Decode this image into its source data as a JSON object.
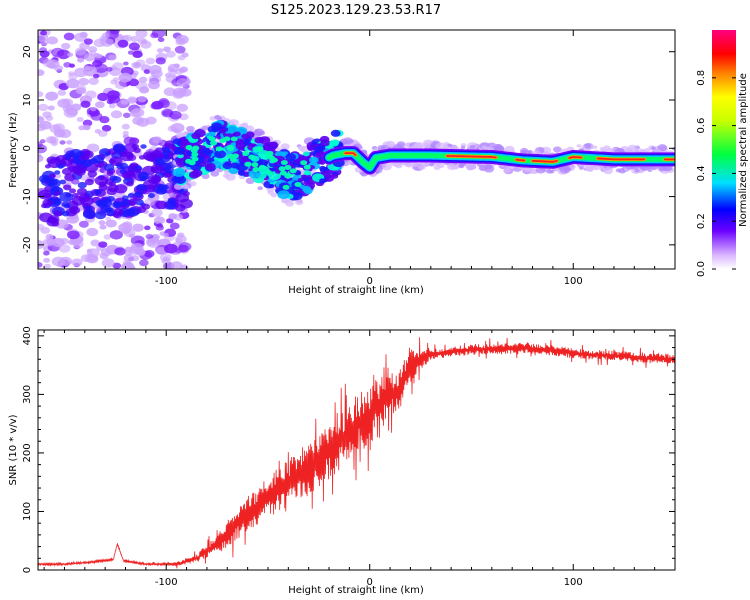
{
  "title": "S125.2023.129.23.53.R17",
  "chart_data": [
    {
      "type": "heatmap",
      "name": "spectrogram",
      "xlabel": "Height of straight line (km)",
      "ylabel": "Frequency (Hz)",
      "xlim": [
        -163,
        150
      ],
      "ylim": [
        -25,
        24.5
      ],
      "xticks": [
        -100,
        0,
        100
      ],
      "yticks": [
        -20,
        -10,
        0,
        10,
        20
      ],
      "colorbar": {
        "label": "Normalized spectral amplitude",
        "range": [
          0,
          1
        ],
        "ticks": [
          0.0,
          0.2,
          0.4,
          0.6,
          0.8
        ]
      },
      "ridge_frequency_hz": [
        {
          "x": -95,
          "y": -3
        },
        {
          "x": -85,
          "y": -1
        },
        {
          "x": -75,
          "y": 1
        },
        {
          "x": -62,
          "y": -1
        },
        {
          "x": -50,
          "y": -3
        },
        {
          "x": -40,
          "y": -6
        },
        {
          "x": -32,
          "y": -5
        },
        {
          "x": -25,
          "y": -3
        },
        {
          "x": -18,
          "y": -1.5
        },
        {
          "x": -12,
          "y": -1
        },
        {
          "x": -8,
          "y": -1
        },
        {
          "x": -3,
          "y": -3
        },
        {
          "x": 0,
          "y": -4
        },
        {
          "x": 3,
          "y": -2
        },
        {
          "x": 10,
          "y": -1.5
        },
        {
          "x": 30,
          "y": -1.5
        },
        {
          "x": 60,
          "y": -1.8
        },
        {
          "x": 75,
          "y": -2.5
        },
        {
          "x": 90,
          "y": -2.8
        },
        {
          "x": 100,
          "y": -1.8
        },
        {
          "x": 120,
          "y": -2.3
        },
        {
          "x": 150,
          "y": -2.3
        }
      ]
    },
    {
      "type": "line",
      "name": "snr",
      "xlabel": "Height of straight line (km)",
      "ylabel": "SNR (10 * v/v)",
      "xlim": [
        -163,
        150
      ],
      "ylim": [
        0,
        410
      ],
      "xticks": [
        -100,
        0,
        100
      ],
      "yticks": [
        0,
        100,
        200,
        300,
        400
      ],
      "color": "#ee2222",
      "series": [
        {
          "name": "SNR",
          "points": [
            {
              "x": -163,
              "y": 10
            },
            {
              "x": -150,
              "y": 10
            },
            {
              "x": -135,
              "y": 14
            },
            {
              "x": -126,
              "y": 18
            },
            {
              "x": -124,
              "y": 45
            },
            {
              "x": -121,
              "y": 16
            },
            {
              "x": -110,
              "y": 10
            },
            {
              "x": -95,
              "y": 10
            },
            {
              "x": -85,
              "y": 20
            },
            {
              "x": -75,
              "y": 45
            },
            {
              "x": -68,
              "y": 70
            },
            {
              "x": -60,
              "y": 95
            },
            {
              "x": -50,
              "y": 125
            },
            {
              "x": -40,
              "y": 150
            },
            {
              "x": -30,
              "y": 175
            },
            {
              "x": -22,
              "y": 200
            },
            {
              "x": -15,
              "y": 220
            },
            {
              "x": -10,
              "y": 230
            },
            {
              "x": -6,
              "y": 250
            },
            {
              "x": 0,
              "y": 265
            },
            {
              "x": 5,
              "y": 285
            },
            {
              "x": 10,
              "y": 305
            },
            {
              "x": 14,
              "y": 300
            },
            {
              "x": 17,
              "y": 330
            },
            {
              "x": 22,
              "y": 355
            },
            {
              "x": 30,
              "y": 368
            },
            {
              "x": 45,
              "y": 375
            },
            {
              "x": 60,
              "y": 378
            },
            {
              "x": 75,
              "y": 380
            },
            {
              "x": 90,
              "y": 375
            },
            {
              "x": 105,
              "y": 368
            },
            {
              "x": 120,
              "y": 366
            },
            {
              "x": 135,
              "y": 362
            },
            {
              "x": 150,
              "y": 360
            }
          ],
          "noise_amplitude": [
            {
              "x": -163,
              "y": 3
            },
            {
              "x": -100,
              "y": 3
            },
            {
              "x": -85,
              "y": 12
            },
            {
              "x": -70,
              "y": 40
            },
            {
              "x": -50,
              "y": 60
            },
            {
              "x": -30,
              "y": 80
            },
            {
              "x": -10,
              "y": 90
            },
            {
              "x": 0,
              "y": 80
            },
            {
              "x": 10,
              "y": 60
            },
            {
              "x": 20,
              "y": 50
            },
            {
              "x": 30,
              "y": 15
            },
            {
              "x": 150,
              "y": 15
            }
          ]
        }
      ]
    }
  ]
}
